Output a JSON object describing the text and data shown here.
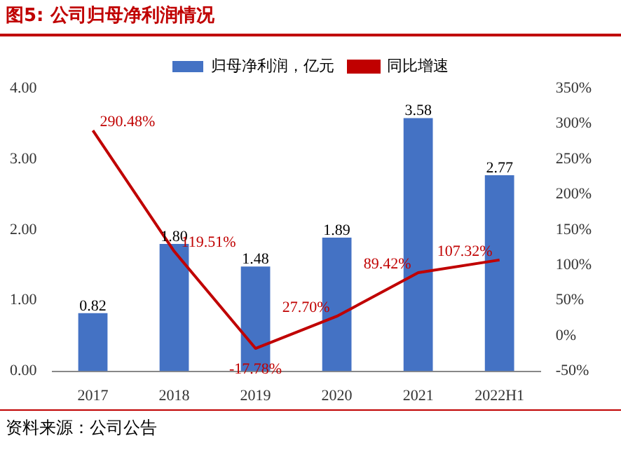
{
  "chart_data": {
    "type": "bar",
    "title": "图5:  公司归母净利润情况",
    "annotations": [
      "资料来源：公司公告"
    ],
    "categories": [
      "2017",
      "2018",
      "2019",
      "2020",
      "2021",
      "2022H1"
    ],
    "series": [
      {
        "name": "归母净利润，亿元",
        "color": "#4472c4",
        "values": [
          0.82,
          1.8,
          1.48,
          1.89,
          3.58,
          2.77
        ],
        "value_labels": [
          "0.82",
          "1.80",
          "1.48",
          "1.89",
          "3.58",
          "2.77"
        ]
      },
      {
        "name": "同比增速",
        "type": "line",
        "axis": "y2",
        "color": "#c00000",
        "values": [
          290.48,
          119.51,
          -17.78,
          27.7,
          89.42,
          107.32
        ],
        "value_labels": [
          "290.48%",
          "119.51%",
          "-17.78%",
          "27.70%",
          "89.42%",
          "107.32%"
        ]
      }
    ],
    "ylim": [
      0,
      4
    ],
    "yticks": [
      {
        "value": 0,
        "label": "0.00"
      },
      {
        "value": 1,
        "label": "1.00"
      },
      {
        "value": 2,
        "label": "2.00"
      },
      {
        "value": 3,
        "label": "3.00"
      },
      {
        "value": 4,
        "label": "4.00"
      }
    ],
    "y2lim": [
      -50,
      350
    ],
    "y2ticks": [
      {
        "value": -50,
        "label": "-50%"
      },
      {
        "value": 0,
        "label": "0%"
      },
      {
        "value": 50,
        "label": "50%"
      },
      {
        "value": 100,
        "label": "100%"
      },
      {
        "value": 150,
        "label": "150%"
      },
      {
        "value": 200,
        "label": "200%"
      },
      {
        "value": 250,
        "label": "250%"
      },
      {
        "value": 300,
        "label": "300%"
      },
      {
        "value": 350,
        "label": "350%"
      }
    ],
    "legend": "top",
    "grid": false,
    "marker": "none",
    "line_style": "solid"
  }
}
